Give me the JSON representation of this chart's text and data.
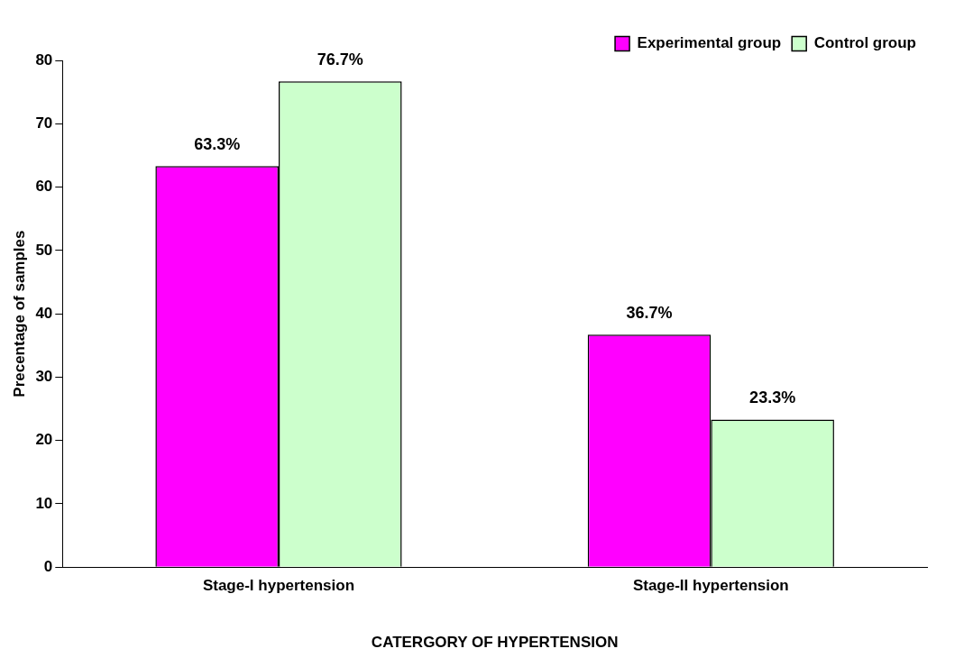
{
  "chart_data": {
    "type": "bar",
    "xlabel": "CATERGORY OF HYPERTENSION",
    "ylabel": "Precentage of samples",
    "categories": [
      "Stage-I hypertension",
      "Stage-II hypertension"
    ],
    "series": [
      {
        "name": "Experimental group",
        "color": "#ff00ff",
        "values": [
          63.3,
          36.7
        ],
        "value_labels": [
          "63.3%",
          "36.7%"
        ]
      },
      {
        "name": "Control group",
        "color": "#ccffcc",
        "values": [
          76.7,
          23.3
        ],
        "value_labels": [
          "76.7%",
          "23.3%"
        ]
      }
    ],
    "ylim": [
      0,
      80
    ],
    "yticks": [
      0,
      10,
      20,
      30,
      40,
      50,
      60,
      70,
      80
    ],
    "grid": false,
    "legend": "top right"
  }
}
